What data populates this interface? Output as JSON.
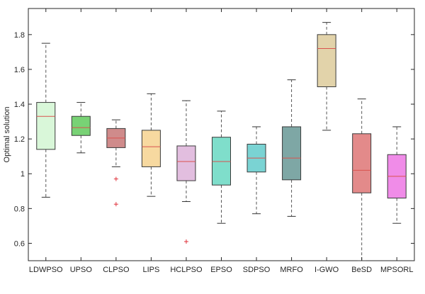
{
  "chart_data": {
    "type": "boxplot",
    "title": "",
    "xlabel": "",
    "ylabel": "Optimal solution",
    "ylim": [
      0.5,
      1.95
    ],
    "yticks": [
      0.6,
      0.8,
      1.0,
      1.2,
      1.4,
      1.6,
      1.8
    ],
    "ytick_labels": [
      "0.6",
      "0.8",
      "1",
      "1.2",
      "1.4",
      "1.6",
      "1.8"
    ],
    "grid": false,
    "median_color": "#d9534f",
    "outlier_color": "#e0303a",
    "whisker_color": "#555555",
    "categories": [
      "LDWPSO",
      "UPSO",
      "CLPSO",
      "LIPS",
      "HCLPSO",
      "EPSO",
      "SDPSO",
      "MRFO",
      "I-GWO",
      "BeSD",
      "MPSORL"
    ],
    "boxes": [
      {
        "name": "LDWPSO",
        "whisker_low": 0.865,
        "q1": 1.14,
        "median": 1.33,
        "q3": 1.41,
        "whisker_high": 1.75,
        "outliers": [],
        "color": "#d9f7d9"
      },
      {
        "name": "UPSO",
        "whisker_low": 1.12,
        "q1": 1.22,
        "median": 1.265,
        "q3": 1.33,
        "whisker_high": 1.41,
        "outliers": [],
        "color": "#78d275"
      },
      {
        "name": "CLPSO",
        "whisker_low": 1.04,
        "q1": 1.15,
        "median": 1.205,
        "q3": 1.26,
        "whisker_high": 1.31,
        "outliers": [
          0.97,
          0.825
        ],
        "color": "#cf8b8b"
      },
      {
        "name": "LIPS",
        "whisker_low": 0.87,
        "q1": 1.04,
        "median": 1.155,
        "q3": 1.25,
        "whisker_high": 1.46,
        "outliers": [],
        "color": "#f7d9a0"
      },
      {
        "name": "HCLPSO",
        "whisker_low": 0.84,
        "q1": 0.96,
        "median": 1.07,
        "q3": 1.16,
        "whisker_high": 1.42,
        "outliers": [
          0.61
        ],
        "color": "#e2bedf"
      },
      {
        "name": "EPSO",
        "whisker_low": 0.715,
        "q1": 0.935,
        "median": 1.07,
        "q3": 1.21,
        "whisker_high": 1.36,
        "outliers": [],
        "color": "#7fdecb"
      },
      {
        "name": "SDPSO",
        "whisker_low": 0.77,
        "q1": 1.01,
        "median": 1.09,
        "q3": 1.17,
        "whisker_high": 1.27,
        "outliers": [],
        "color": "#7ad3d3"
      },
      {
        "name": "MRFO",
        "whisker_low": 0.755,
        "q1": 0.965,
        "median": 1.09,
        "q3": 1.27,
        "whisker_high": 1.54,
        "outliers": [],
        "color": "#7ea7a5"
      },
      {
        "name": "I-GWO",
        "whisker_low": 1.25,
        "q1": 1.5,
        "median": 1.72,
        "q3": 1.8,
        "whisker_high": 1.87,
        "outliers": [],
        "color": "#e2d3aa"
      },
      {
        "name": "BeSD",
        "whisker_low": 0.5,
        "q1": 0.89,
        "median": 1.02,
        "q3": 1.23,
        "whisker_high": 1.43,
        "outliers": [],
        "color": "#e38a8a"
      },
      {
        "name": "MPSORL",
        "whisker_low": 0.715,
        "q1": 0.86,
        "median": 0.985,
        "q3": 1.11,
        "whisker_high": 1.27,
        "outliers": [],
        "color": "#f08ce8"
      }
    ]
  }
}
